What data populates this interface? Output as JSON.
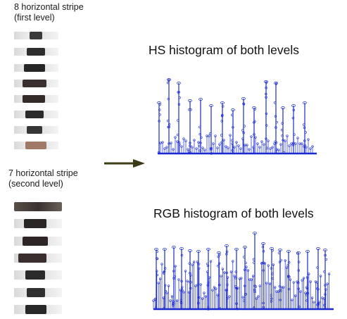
{
  "level1": {
    "caption_line1": "8 horizontal stripe",
    "caption_line2": "(first level)",
    "stripe_count": 8
  },
  "level2": {
    "caption_line1": "7 horizontal stripe",
    "caption_line2": "(second level)",
    "stripe_count": 7
  },
  "hs_title": "HS histogram of both levels",
  "rgb_title": "RGB histogram of both levels",
  "colors": {
    "histogram": "#1a2ad0",
    "arrow": "#3c3c14"
  }
}
